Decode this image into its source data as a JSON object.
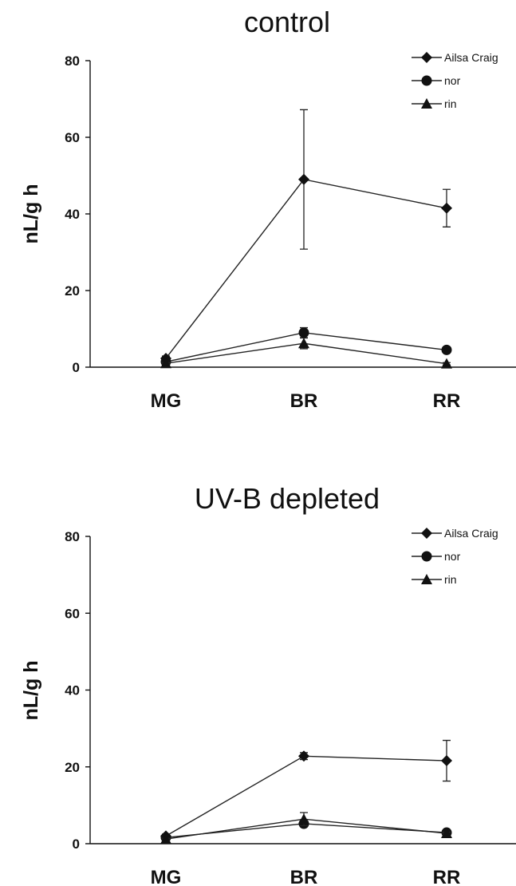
{
  "chart_data": [
    {
      "type": "line",
      "title": "control",
      "xlabel": "",
      "ylabel": "nL/g h",
      "ylim": [
        0,
        80
      ],
      "yticks": [
        "0",
        "20",
        "40",
        "60",
        "80"
      ],
      "categories": [
        "MG",
        "BR",
        "RR"
      ],
      "legend_position": "top-right",
      "series": [
        {
          "name": "Ailsa Craig",
          "marker": "diamond",
          "values": [
            2.3,
            49.0,
            41.5
          ],
          "errors": [
            0.6,
            18.2,
            4.9
          ]
        },
        {
          "name": "nor",
          "marker": "circle",
          "values": [
            1.4,
            9.0,
            4.5
          ],
          "errors": [
            0.3,
            1.3,
            0.5
          ]
        },
        {
          "name": "rin",
          "marker": "triangle",
          "values": [
            1.0,
            6.2,
            0.9
          ],
          "errors": [
            0.2,
            1.4,
            0.3
          ]
        }
      ]
    },
    {
      "type": "line",
      "title": "UV-B depleted",
      "xlabel": "",
      "ylabel": "nL/g h",
      "ylim": [
        0,
        80
      ],
      "yticks": [
        "0",
        "20",
        "40",
        "60",
        "80"
      ],
      "categories": [
        "MG",
        "BR",
        "RR"
      ],
      "legend_position": "top-right",
      "series": [
        {
          "name": "Ailsa Craig",
          "marker": "diamond",
          "values": [
            2.0,
            22.8,
            21.6
          ],
          "errors": [
            0.5,
            0.9,
            5.3
          ]
        },
        {
          "name": "nor",
          "marker": "circle",
          "values": [
            1.6,
            5.2,
            2.9
          ],
          "errors": [
            0.3,
            0.5,
            0.4
          ]
        },
        {
          "name": "rin",
          "marker": "triangle",
          "values": [
            1.2,
            6.4,
            2.7
          ],
          "errors": [
            0.2,
            1.7,
            0.3
          ]
        }
      ]
    }
  ]
}
